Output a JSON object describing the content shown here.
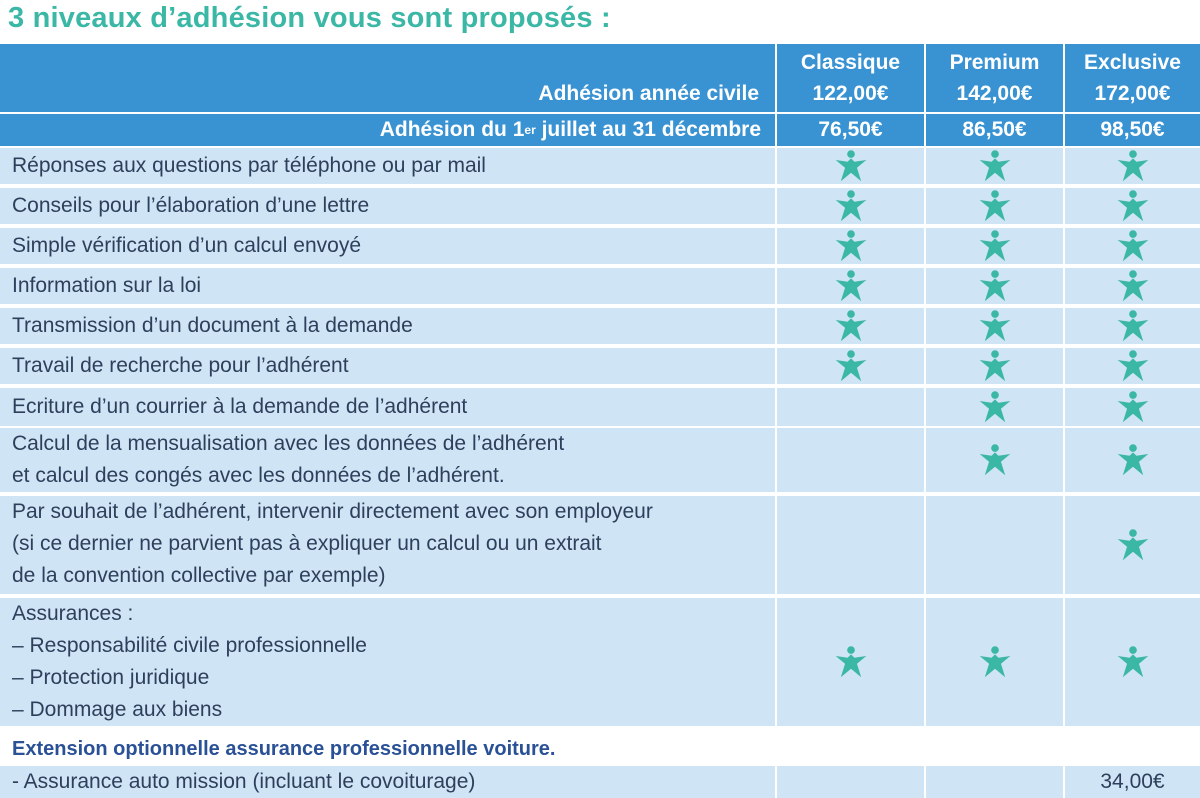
{
  "title": "3 niveaux d’adhésion vous sont proposés :",
  "header": {
    "annee_label": "Adhésion année civile",
    "juillet_prefix": "Adhésion du 1",
    "juillet_sup": "er",
    "juillet_suffix": " juillet au 31 décembre",
    "tiers": [
      {
        "name": "Classique",
        "annual_price": "122,00€",
        "half_price": "76,50€"
      },
      {
        "name": "Premium",
        "annual_price": "142,00€",
        "half_price": "86,50€"
      },
      {
        "name": "Exclusive",
        "annual_price": "172,00€",
        "half_price": "98,50€"
      }
    ]
  },
  "features": [
    {
      "lines": [
        "Réponses aux questions par téléphone ou par mail"
      ],
      "included": [
        true,
        true,
        true
      ]
    },
    {
      "lines": [
        "Conseils pour l’élaboration d’une lettre"
      ],
      "included": [
        true,
        true,
        true
      ]
    },
    {
      "lines": [
        "Simple vérification d’un calcul envoyé"
      ],
      "included": [
        true,
        true,
        true
      ]
    },
    {
      "lines": [
        "Information sur la loi"
      ],
      "included": [
        true,
        true,
        true
      ]
    },
    {
      "lines": [
        "Transmission d’un document à la demande"
      ],
      "included": [
        true,
        true,
        true
      ]
    },
    {
      "lines": [
        "Travail de recherche pour l’adhérent"
      ],
      "included": [
        true,
        true,
        true
      ]
    },
    {
      "lines": [
        "Ecriture d’un courrier à la demande de l’adhérent"
      ],
      "included": [
        false,
        true,
        true
      ]
    },
    {
      "lines": [
        "Calcul de la mensualisation avec les données de l’adhérent",
        "et calcul des congés avec les données de l’adhérent."
      ],
      "included": [
        false,
        true,
        true
      ]
    },
    {
      "lines": [
        "Par souhait de l’adhérent, intervenir directement avec son employeur",
        "(si ce dernier ne parvient pas à expliquer un calcul ou un extrait",
        "de la convention collective par exemple)"
      ],
      "included": [
        false,
        false,
        true
      ]
    },
    {
      "lines": [
        "Assurances :",
        "– Responsabilité civile professionnelle",
        "– Protection juridique",
        "– Dommage aux biens"
      ],
      "included": [
        true,
        true,
        true
      ]
    }
  ],
  "extension": {
    "title": "Extension optionnelle assurance professionnelle voiture.",
    "option_label": "- Assurance auto mission (incluant le covoiturage)",
    "option_values": [
      "",
      "",
      "34,00€"
    ]
  },
  "icons": {
    "included": "star-person-icon"
  },
  "colors": {
    "title": "#3ab7a5",
    "header_bg": "#3993d3",
    "row_bg": "#cfe4f4",
    "text": "#2e3f5c",
    "star": "#3ab7a5",
    "extension_title": "#2a5196"
  }
}
